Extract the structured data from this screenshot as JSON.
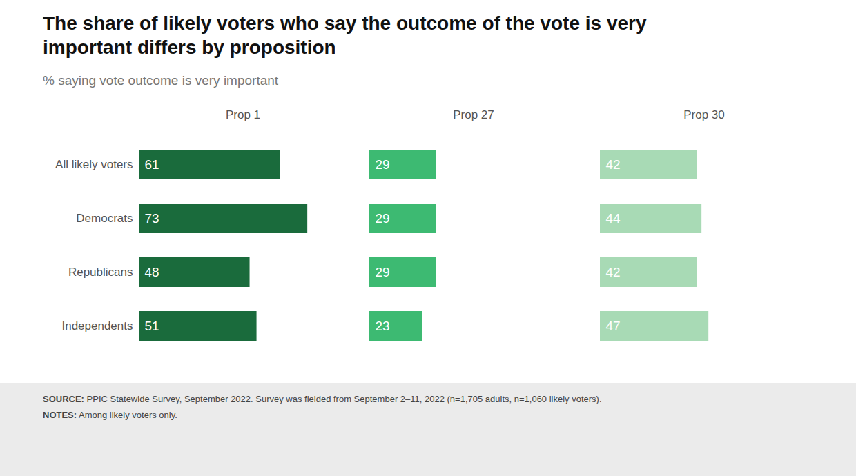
{
  "chart_data": {
    "type": "bar",
    "orientation": "horizontal",
    "title": "The share of likely voters who say the outcome of the vote is very\nimportant differs by proposition",
    "subtitle": "% saying vote outcome is very important",
    "categories": [
      "All likely voters",
      "Democrats",
      "Republicans",
      "Independents"
    ],
    "series": [
      {
        "name": "Prop 1",
        "color": "#1a6b3c",
        "values": [
          61,
          73,
          48,
          51
        ]
      },
      {
        "name": "Prop 27",
        "color": "#3dba72",
        "values": [
          29,
          29,
          29,
          23
        ]
      },
      {
        "name": "Prop 30",
        "color": "#a8dab5",
        "values": [
          42,
          44,
          42,
          47
        ]
      }
    ],
    "xlim": [
      0,
      90
    ],
    "data_labels": true,
    "tick_labels": "y",
    "grid": false,
    "annotations": [
      "SOURCE: PPIC Statewide Survey, September 2022. Survey was fielded from September 2–11, 2022 (n=1,705 adults, n=1,060 likely voters).",
      "NOTES: Among likely voters only."
    ]
  }
}
